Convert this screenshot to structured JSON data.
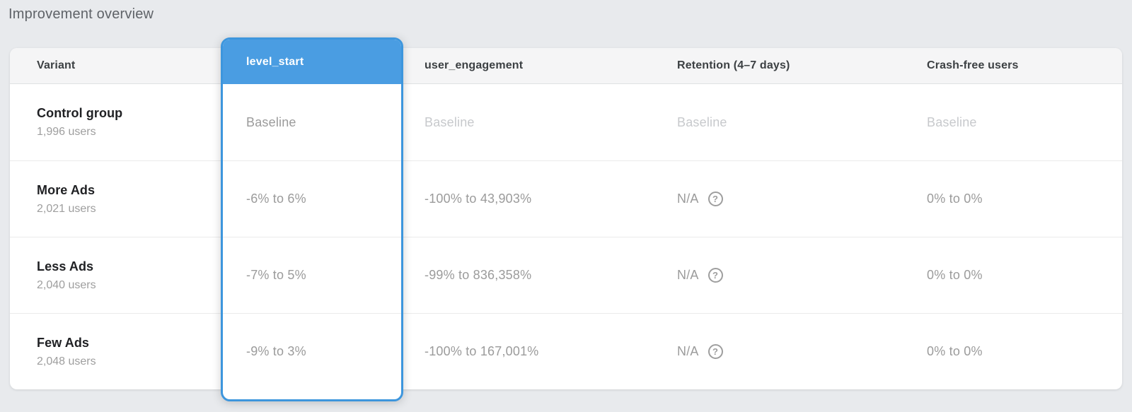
{
  "page": {
    "title": "Improvement overview"
  },
  "table": {
    "columns": [
      {
        "id": "variant",
        "label": "Variant",
        "selected": false
      },
      {
        "id": "level_start",
        "label": "level_start",
        "selected": true
      },
      {
        "id": "user_engagement",
        "label": "user_engagement",
        "selected": false
      },
      {
        "id": "retention",
        "label": "Retention (4–7 days)",
        "selected": false
      },
      {
        "id": "crash_free",
        "label": "Crash-free users",
        "selected": false
      }
    ],
    "rows": [
      {
        "variant": "Control group",
        "users": "1,996 users",
        "level_start": "Baseline",
        "user_engagement": "Baseline",
        "retention": "Baseline",
        "crash_free": "Baseline"
      },
      {
        "variant": "More Ads",
        "users": "2,021 users",
        "level_start": "-6% to 6%",
        "user_engagement": "-100% to 43,903%",
        "retention": "N/A",
        "crash_free": "0% to 0%"
      },
      {
        "variant": "Less Ads",
        "users": "2,040 users",
        "level_start": "-7% to 5%",
        "user_engagement": "-99% to 836,358%",
        "retention": "N/A",
        "crash_free": "0% to 0%"
      },
      {
        "variant": "Few Ads",
        "users": "2,048 users",
        "level_start": "-9% to 3%",
        "user_engagement": "-100% to 167,001%",
        "retention": "N/A",
        "crash_free": "0% to 0%"
      }
    ]
  },
  "icons": {
    "help_glyph": "?"
  },
  "colors": {
    "selected_column_fill": "#4a9de2",
    "selected_column_border": "#3d96dd",
    "page_background": "#e8eaed",
    "header_background": "#f5f5f6"
  }
}
